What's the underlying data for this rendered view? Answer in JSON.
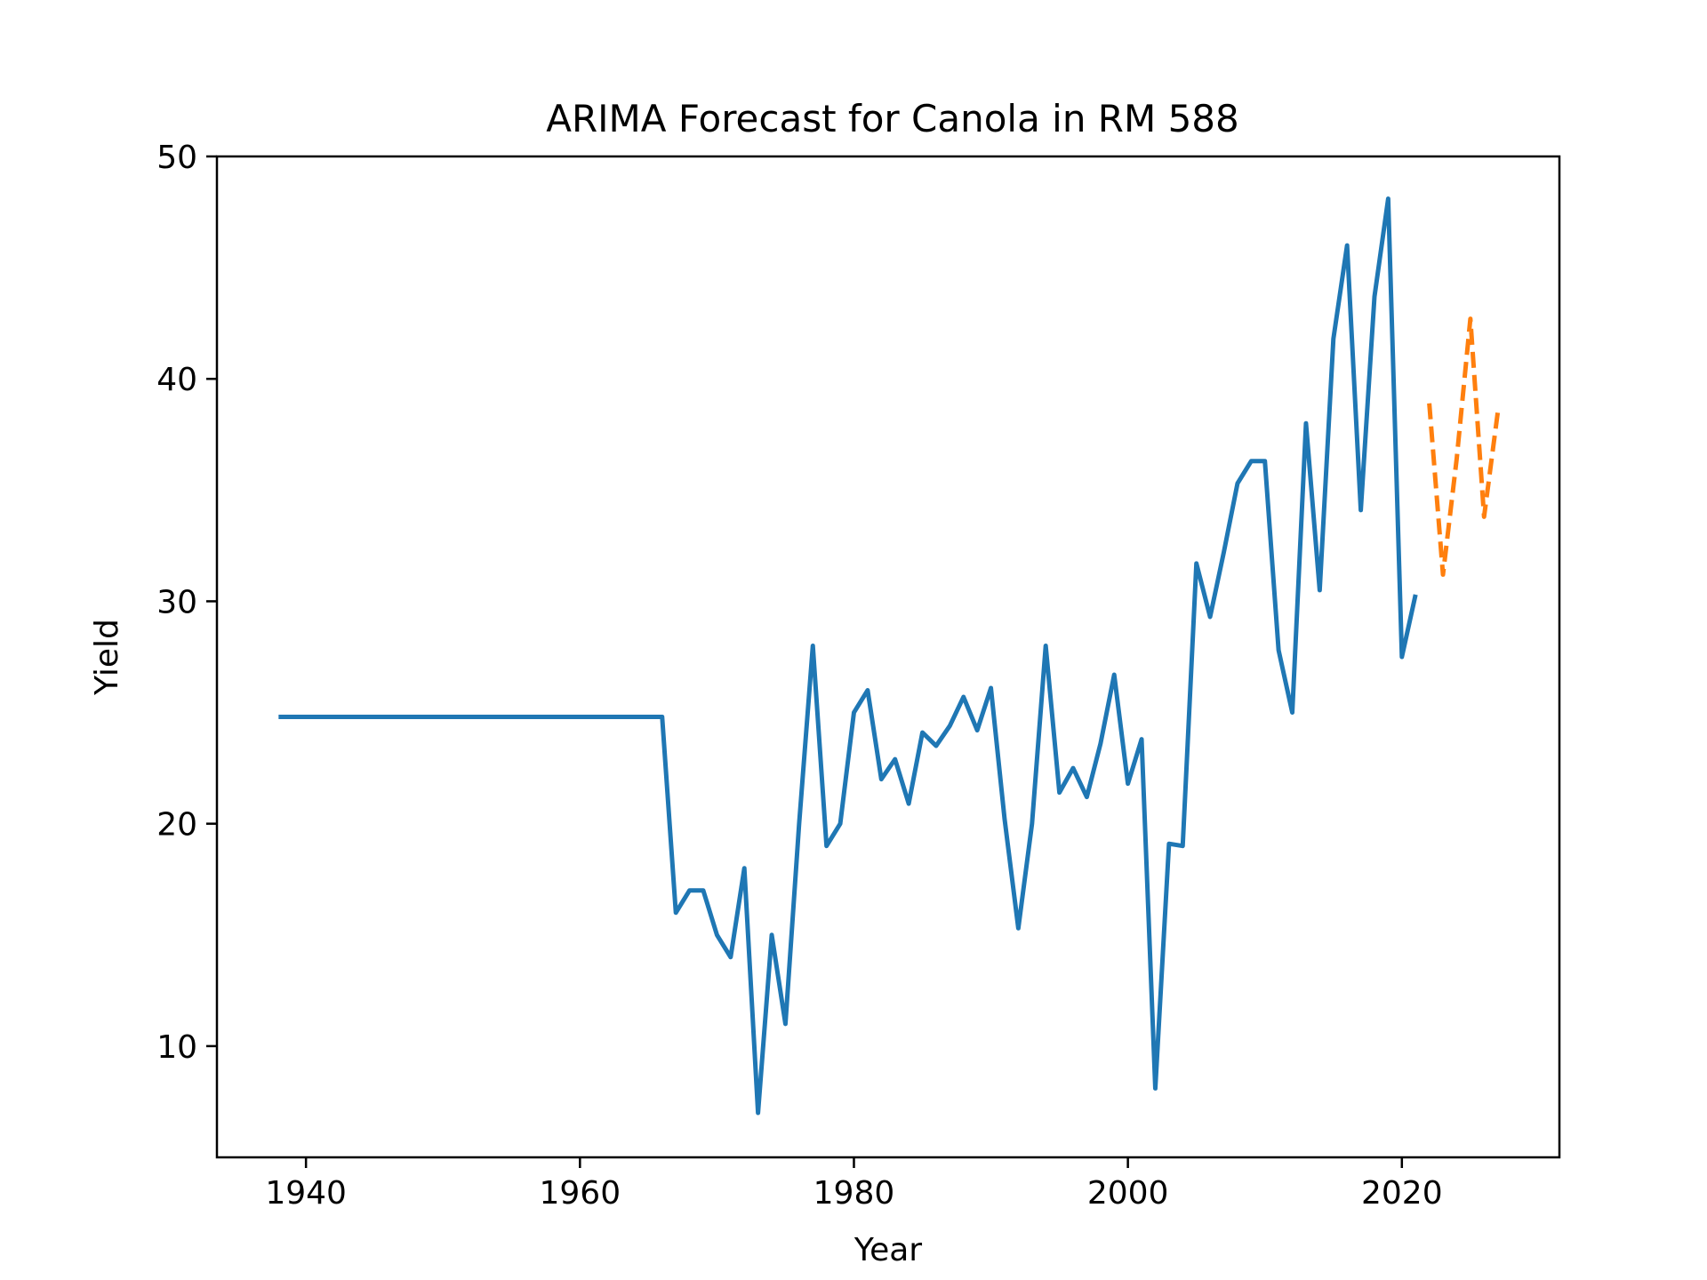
{
  "chart_data": {
    "type": "line",
    "title": "ARIMA Forecast for Canola in RM 588",
    "xlabel": "Year",
    "ylabel": "Yield",
    "xlim": [
      1933.5,
      2031.5
    ],
    "ylim": [
      5,
      50
    ],
    "xticks": [
      1940,
      1960,
      1980,
      2000,
      2020
    ],
    "yticks": [
      10,
      20,
      30,
      40,
      50
    ],
    "grid": false,
    "series": [
      {
        "style": "solid",
        "color": "#1f77b4",
        "x": [
          1938,
          1939,
          1940,
          1941,
          1942,
          1943,
          1944,
          1945,
          1946,
          1947,
          1948,
          1949,
          1950,
          1951,
          1952,
          1953,
          1954,
          1955,
          1956,
          1957,
          1958,
          1959,
          1960,
          1961,
          1962,
          1963,
          1964,
          1965,
          1966,
          1967,
          1968,
          1969,
          1970,
          1971,
          1972,
          1973,
          1974,
          1975,
          1976,
          1977,
          1978,
          1979,
          1980,
          1981,
          1982,
          1983,
          1984,
          1985,
          1986,
          1987,
          1988,
          1989,
          1990,
          1991,
          1992,
          1993,
          1994,
          1995,
          1996,
          1997,
          1998,
          1999,
          2000,
          2001,
          2002,
          2003,
          2004,
          2005,
          2006,
          2007,
          2008,
          2009,
          2010,
          2011,
          2012,
          2013,
          2014,
          2015,
          2016,
          2017,
          2018,
          2019,
          2020,
          2021
        ],
        "values": [
          24.8,
          24.8,
          24.8,
          24.8,
          24.8,
          24.8,
          24.8,
          24.8,
          24.8,
          24.8,
          24.8,
          24.8,
          24.8,
          24.8,
          24.8,
          24.8,
          24.8,
          24.8,
          24.8,
          24.8,
          24.8,
          24.8,
          24.8,
          24.8,
          24.8,
          24.8,
          24.8,
          24.8,
          24.8,
          16.0,
          17.0,
          17.0,
          15.0,
          14.0,
          18.0,
          7.0,
          15.0,
          11.0,
          20.0,
          28.0,
          19.0,
          20.0,
          25.0,
          26.0,
          22.0,
          22.9,
          20.9,
          24.1,
          23.5,
          24.4,
          25.7,
          24.2,
          26.1,
          20.2,
          15.3,
          20.0,
          28.0,
          21.4,
          22.5,
          21.2,
          23.6,
          26.7,
          21.8,
          23.8,
          8.1,
          19.1,
          19.0,
          31.7,
          29.3,
          32.2,
          35.3,
          36.3,
          36.3,
          27.8,
          25.0,
          38.0,
          30.5,
          41.8,
          46.0,
          34.1,
          43.7,
          48.1,
          27.5,
          30.3
        ]
      },
      {
        "style": "dashed",
        "color": "#ff7f0e",
        "x": [
          2022,
          2023,
          2024,
          2025,
          2026,
          2027
        ],
        "values": [
          38.9,
          31.2,
          36.4,
          42.7,
          33.8,
          38.5
        ]
      }
    ]
  }
}
